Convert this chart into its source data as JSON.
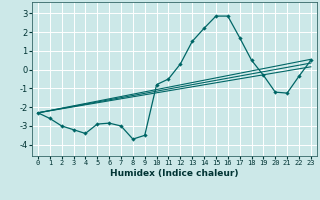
{
  "xlabel": "Humidex (Indice chaleur)",
  "bg_color": "#cce8e8",
  "grid_color": "#ffffff",
  "line_color": "#006666",
  "xlim": [
    -0.5,
    23.5
  ],
  "ylim": [
    -4.6,
    3.6
  ],
  "xticks": [
    0,
    1,
    2,
    3,
    4,
    5,
    6,
    7,
    8,
    9,
    10,
    11,
    12,
    13,
    14,
    15,
    16,
    17,
    18,
    19,
    20,
    21,
    22,
    23
  ],
  "yticks": [
    -4,
    -3,
    -2,
    -1,
    0,
    1,
    2,
    3
  ],
  "main_x": [
    0,
    1,
    2,
    3,
    4,
    5,
    6,
    7,
    8,
    9,
    10,
    11,
    12,
    13,
    14,
    15,
    16,
    17,
    18,
    19,
    20,
    21,
    22,
    23
  ],
  "main_y": [
    -2.3,
    -2.6,
    -3.0,
    -3.2,
    -3.4,
    -2.9,
    -2.85,
    -3.0,
    -3.7,
    -3.5,
    -0.8,
    -0.5,
    0.3,
    1.5,
    2.2,
    2.85,
    2.85,
    1.7,
    0.5,
    -0.3,
    -1.2,
    -1.25,
    -0.35,
    0.5
  ],
  "trend_lines": [
    {
      "x0": 0,
      "y0": -2.3,
      "x1": 23,
      "y1": 0.55
    },
    {
      "x0": 0,
      "y0": -2.3,
      "x1": 23,
      "y1": 0.35
    },
    {
      "x0": 0,
      "y0": -2.3,
      "x1": 23,
      "y1": 0.15
    }
  ]
}
